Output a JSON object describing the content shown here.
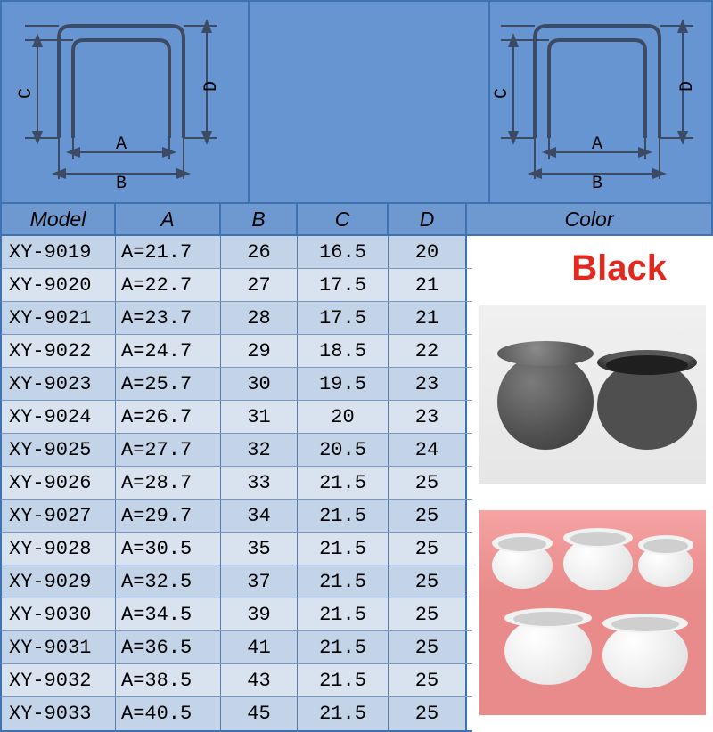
{
  "diagram": {
    "labels": {
      "A": "A",
      "B": "B",
      "C": "C",
      "D": "D"
    },
    "stroke_color": "#3c4a63",
    "bg_color": "#6795d1",
    "arrow_color": "#3c4a63"
  },
  "table": {
    "headers": {
      "model": "Model",
      "a": "A",
      "b": "B",
      "c": "C",
      "d": "D",
      "color": "Color"
    },
    "header_bg": "#6d98d0",
    "row_bg_even": "#d9e3f0",
    "row_bg_odd": "#c3d3e8",
    "border_color": "#3f72b0",
    "text_color": "#000000",
    "rows": [
      {
        "model": "XY-9019",
        "a": "A=21.7",
        "b": "26",
        "c": "16.5",
        "d": "20"
      },
      {
        "model": "XY-9020",
        "a": "A=22.7",
        "b": "27",
        "c": "17.5",
        "d": "21"
      },
      {
        "model": "XY-9021",
        "a": "A=23.7",
        "b": "28",
        "c": "17.5",
        "d": "21"
      },
      {
        "model": "XY-9022",
        "a": "A=24.7",
        "b": "29",
        "c": "18.5",
        "d": "22"
      },
      {
        "model": "XY-9023",
        "a": "A=25.7",
        "b": "30",
        "c": "19.5",
        "d": "23"
      },
      {
        "model": "XY-9024",
        "a": "A=26.7",
        "b": "31",
        "c": "20",
        "d": "23"
      },
      {
        "model": "XY-9025",
        "a": "A=27.7",
        "b": "32",
        "c": "20.5",
        "d": "24"
      },
      {
        "model": "XY-9026",
        "a": "A=28.7",
        "b": "33",
        "c": "21.5",
        "d": "25"
      },
      {
        "model": "XY-9027",
        "a": "A=29.7",
        "b": "34",
        "c": "21.5",
        "d": "25"
      },
      {
        "model": "XY-9028",
        "a": "A=30.5",
        "b": "35",
        "c": "21.5",
        "d": "25"
      },
      {
        "model": "XY-9029",
        "a": "A=32.5",
        "b": "37",
        "c": "21.5",
        "d": "25"
      },
      {
        "model": "XY-9030",
        "a": "A=34.5",
        "b": "39",
        "c": "21.5",
        "d": "25"
      },
      {
        "model": "XY-9031",
        "a": "A=36.5",
        "b": "41",
        "c": "21.5",
        "d": "25"
      },
      {
        "model": "XY-9032",
        "a": "A=38.5",
        "b": "43",
        "c": "21.5",
        "d": "25"
      },
      {
        "model": "XY-9033",
        "a": "A=40.5",
        "b": "45",
        "c": "21.5",
        "d": "25"
      }
    ]
  },
  "color_section": {
    "label": "Black",
    "label_color": "#e2291f",
    "label_fontsize": 40,
    "photos": {
      "dark_caps_bg": "#eeeeee",
      "white_caps_bg": "#ea9595",
      "cap_dark_color": "#505050",
      "cap_white_color": "#f5f5f5"
    }
  }
}
